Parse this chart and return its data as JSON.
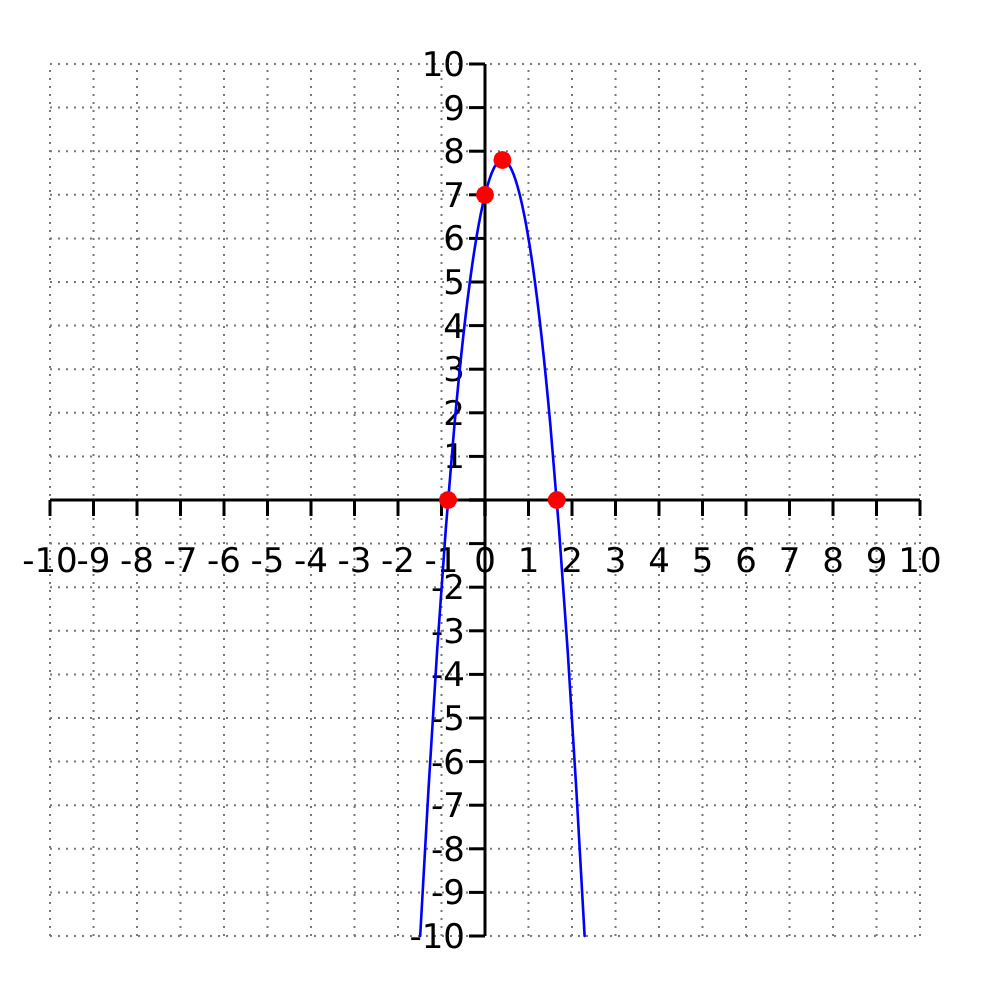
{
  "chart_data": {
    "type": "line",
    "xlim": [
      -10,
      10
    ],
    "ylim": [
      -10,
      10
    ],
    "xticks": [
      -10,
      -9,
      -8,
      -7,
      -6,
      -5,
      -4,
      -3,
      -2,
      -1,
      0,
      1,
      2,
      3,
      4,
      5,
      6,
      7,
      8,
      9,
      10
    ],
    "yticks": [
      -10,
      -9,
      -8,
      -7,
      -6,
      -5,
      -4,
      -3,
      -2,
      {
        "value": -1,
        "label": null
      },
      {
        "value": 0,
        "label": null
      },
      1,
      2,
      3,
      4,
      5,
      6,
      7,
      8,
      9,
      10
    ],
    "grid": true,
    "series": [
      {
        "color": "#0000ff",
        "x": [
          -1.49,
          -1.3,
          -1.1,
          -0.9,
          -0.7,
          -0.5,
          -0.3,
          -0.1,
          0.1,
          0.25,
          0.4,
          0.55,
          0.7,
          0.9,
          1.1,
          1.3,
          1.5,
          1.7,
          1.9,
          2.1,
          2.29
        ],
        "values": [
          -10,
          -6.65,
          -3.45,
          -0.65,
          1.75,
          3.75,
          5.35,
          6.55,
          7.35,
          7.69,
          7.8,
          7.69,
          7.35,
          6.55,
          5.35,
          3.75,
          1.75,
          -0.65,
          -3.45,
          -6.65,
          -10
        ]
      },
      {
        "type": "scatter",
        "color": "#ff0000",
        "marker": "circle",
        "x": [
          -0.85,
          0,
          0.4,
          1.65
        ],
        "values": [
          0,
          7,
          7.8,
          0
        ]
      }
    ]
  }
}
